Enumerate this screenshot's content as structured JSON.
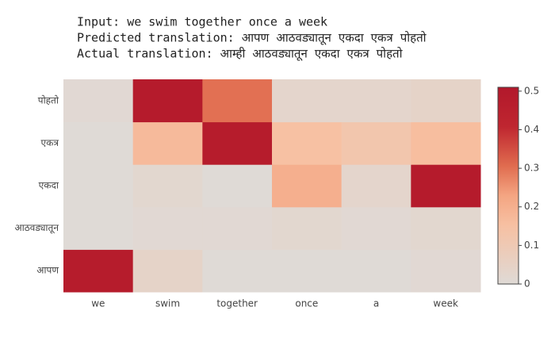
{
  "chart_data": {
    "type": "heatmap",
    "title": [
      "Input: we swim together once a week",
      "Predicted translation: आपण आठवड्यातून एकदा एकत्र पोहतो",
      "Actual translation: आम्ही आठवड्यातून एकदा एकत्र पोहतो"
    ],
    "x": [
      "we",
      "swim",
      "together",
      "once",
      "a",
      "week"
    ],
    "y": [
      "आपण",
      "आठवड्यातून",
      "एकदा",
      "एकत्र",
      "पोहतो"
    ],
    "z": [
      [
        0.48,
        0.04,
        0.0,
        0.0,
        0.0,
        0.01
      ],
      [
        0.0,
        0.01,
        0.01,
        0.02,
        0.01,
        0.02
      ],
      [
        0.0,
        0.02,
        0.0,
        0.2,
        0.03,
        0.49
      ],
      [
        0.0,
        0.17,
        0.48,
        0.15,
        0.12,
        0.16
      ],
      [
        0.01,
        0.49,
        0.3,
        0.03,
        0.03,
        0.04
      ]
    ],
    "zlim": [
      0,
      0.51
    ],
    "zticks": [
      0,
      0.1,
      0.2,
      0.3,
      0.4,
      0.5
    ],
    "colorscale": [
      [
        0,
        "#dfdad6"
      ],
      [
        0.3,
        "#f7c0a2"
      ],
      [
        0.45,
        "#f4a582"
      ],
      [
        0.6,
        "#e06c4f"
      ],
      [
        0.8,
        "#bf2630"
      ],
      [
        1,
        "#b2182b"
      ]
    ]
  }
}
